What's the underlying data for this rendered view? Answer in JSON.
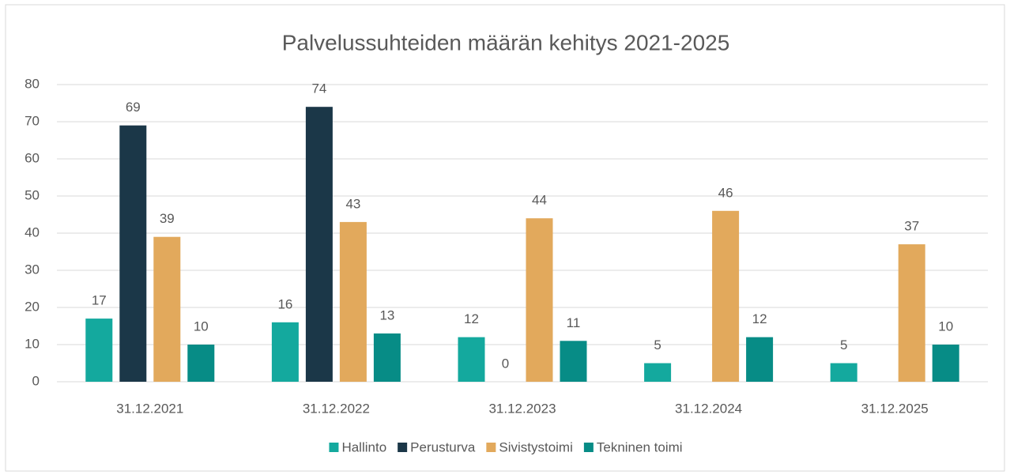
{
  "chart_data": {
    "type": "bar",
    "title": "Palvelussuhteiden määrän kehitys 2021-2025",
    "categories": [
      "31.12.2021",
      "31.12.2022",
      "31.12.2023",
      "31.12.2024",
      "31.12.2025"
    ],
    "series": [
      {
        "name": "Hallinto",
        "color": "#14a99e",
        "values": [
          17,
          16,
          12,
          5,
          5
        ]
      },
      {
        "name": "Perusturva",
        "color": "#1b3748",
        "values": [
          69,
          74,
          0,
          null,
          null
        ]
      },
      {
        "name": "Sivistystoimi",
        "color": "#e2a95c",
        "values": [
          39,
          43,
          44,
          46,
          37
        ]
      },
      {
        "name": "Tekninen toimi",
        "color": "#078c86",
        "values": [
          10,
          13,
          11,
          12,
          10
        ]
      }
    ],
    "ylim": [
      0,
      80
    ],
    "yticks": [
      0,
      10,
      20,
      30,
      40,
      50,
      60,
      70,
      80
    ],
    "grid": true,
    "legend": "bottom"
  }
}
